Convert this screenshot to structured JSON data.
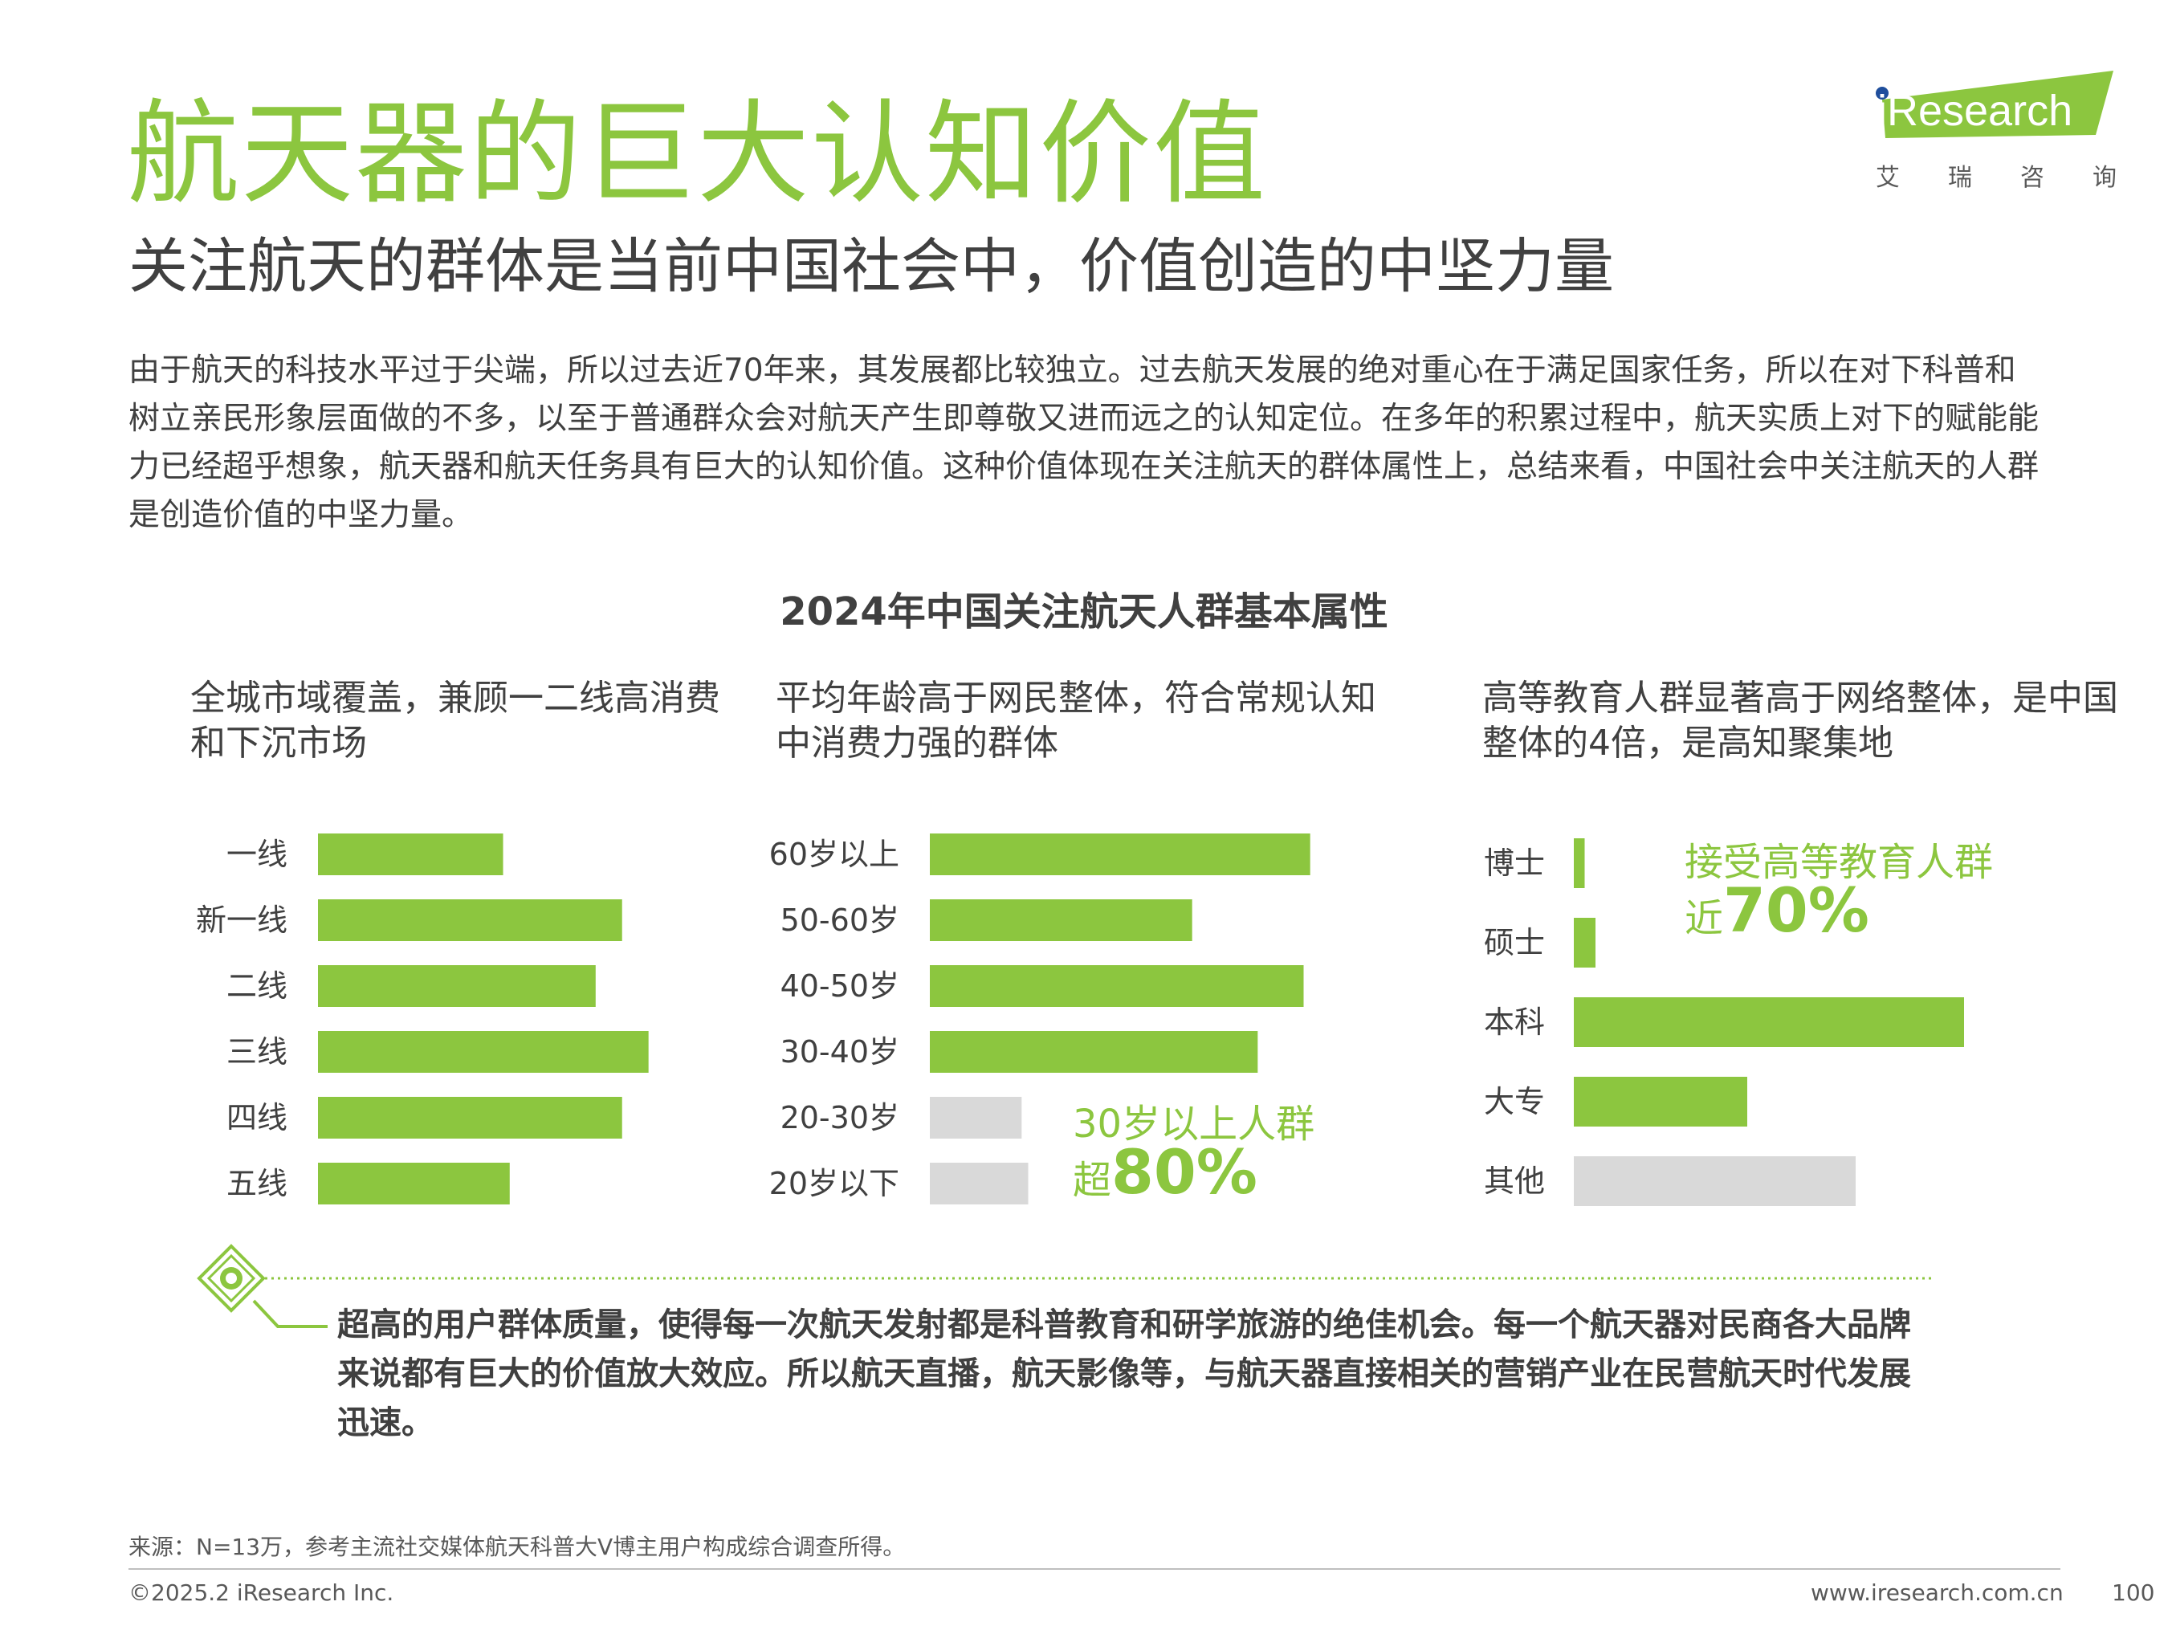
{
  "title": "航天器的巨大认知价值",
  "subtitle": "关注航天的群体是当前中国社会中，价值创造的中坚力量",
  "intro": "由于航天的科技水平过于尖端，所以过去近70年来，其发展都比较独立。过去航天发展的绝对重心在于满足国家任务，所以在对下科普和树立亲民形象层面做的不多，以至于普通群众会对航天产生即尊敬又进而远之的认知定位。在多年的积累过程中，航天实质上对下的赋能能力已经超乎想象，航天器和航天任务具有巨大的认知价值。这种价值体现在关注航天的群体属性上，总结来看，中国社会中关注航天的人群是创造价值的中坚力量。",
  "logo": {
    "wordmark": "iResearch",
    "sub_chars": [
      "艾",
      "瑞",
      "咨",
      "询"
    ]
  },
  "colors": {
    "accent": "#8cc63f",
    "muted": "#d9d9d9",
    "text": "#404040"
  },
  "chart_data": [
    {
      "type": "bar",
      "orientation": "horizontal",
      "title": "2024年中国关注航天人群基本属性",
      "heading": "全城市域覆盖，兼顾一二线高消费和下沉市场",
      "categories": [
        "一线",
        "新一线",
        "二线",
        "三线",
        "四线",
        "五线"
      ],
      "values": [
        14,
        23,
        21,
        25,
        23,
        14.5
      ],
      "highlight": [
        true,
        true,
        true,
        true,
        true,
        true
      ],
      "xlim": [
        0,
        30
      ]
    },
    {
      "type": "bar",
      "orientation": "horizontal",
      "heading": "平均年龄高于网民整体，符合常规认知中消费力强的群体",
      "categories": [
        "60岁以上",
        "50-60岁",
        "40-50岁",
        "30-40岁",
        "20-30岁",
        "20岁以下"
      ],
      "values": [
        29,
        20,
        28.5,
        25,
        7,
        7.5
      ],
      "highlight": [
        true,
        true,
        true,
        true,
        false,
        false
      ],
      "xlim": [
        0,
        30
      ],
      "annotation": {
        "line1": "30岁以上人群",
        "prefix": "超",
        "big": "80%"
      }
    },
    {
      "type": "bar",
      "orientation": "horizontal",
      "heading": "高等教育人群显著高于网络整体，是中国整体的4倍，是高知聚集地",
      "categories": [
        "博士",
        "硕士",
        "本科",
        "大专",
        "其他"
      ],
      "values": [
        1,
        2,
        36,
        16,
        26
      ],
      "highlight": [
        true,
        true,
        true,
        true,
        false
      ],
      "xlim": [
        0,
        40
      ],
      "annotation": {
        "line1": "接受高等教育人群",
        "prefix": "近",
        "big": "70%"
      }
    }
  ],
  "panel1": {
    "heading": "全城市域覆盖，兼顾一二线高消费和下沉市场"
  },
  "panel2": {
    "heading": "平均年龄高于网民整体，符合常规认知中消费力强的群体"
  },
  "panel3": {
    "heading": "高等教育人群显著高于网络整体，是中国整体的4倍，是高知聚集地"
  },
  "call2": {
    "line1": "30岁以上人群",
    "prefix": "超",
    "big": "80%"
  },
  "call3": {
    "line1": "接受高等教育人群",
    "prefix": "近",
    "big": "70%"
  },
  "footer_note": "超高的用户群体质量，使得每一次航天发射都是科普教育和研学旅游的绝佳机会。每一个航天器对民商各大品牌来说都有巨大的价值放大效应。所以航天直播，航天影像等，与航天器直接相关的营销产业在民营航天时代发展迅速。",
  "source": "来源：N=13万，参考主流社交媒体航天科普大V博主用户构成综合调查所得。",
  "copyright": "©2025.2 iResearch Inc.",
  "website": "www.iresearch.com.cn",
  "page_number": "100"
}
